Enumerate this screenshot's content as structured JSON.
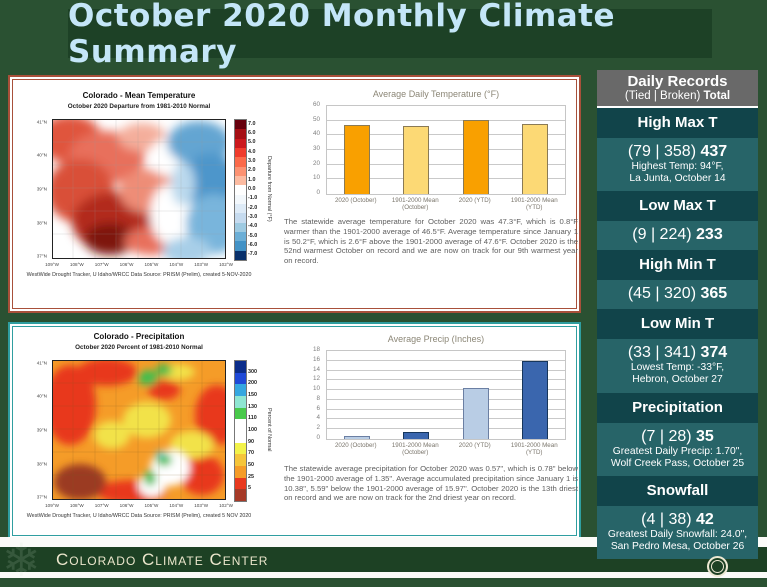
{
  "slide_title": "October 2020 Monthly Climate Summary",
  "colors": {
    "slide_background": "#2A5132",
    "title_box": "#1D4126",
    "title_text": "#C4E6F8",
    "temp_panel_border": "#A8503A",
    "precip_panel_border": "#2F9EA0",
    "sidebar_gray": "#696969",
    "sidebar_header_teal": "#11444A",
    "sidebar_body_teal": "#276468",
    "footer_green": "#1D4124"
  },
  "temp_panel": {
    "map": {
      "title": "Colorado - Mean Temperature",
      "subtitle": "October 2020  Departure from 1981-2010 Normal",
      "caption": "WestWide Drought Tracker, U Idaho/WRCC Data Source: PRISM (Prelim), created 5-NOV-2020",
      "colorbar_label": "Departure from Normal (°F)",
      "colorbar_ticks": [
        "7.0",
        "6.0",
        "5.0",
        "4.0",
        "3.0",
        "2.0",
        "1.0",
        "0.0",
        "-1.0",
        "-2.0",
        "-3.0",
        "-4.0",
        "-5.0",
        "-6.0",
        "-7.0"
      ],
      "colorbar_colors": [
        "#67000D",
        "#A50F15",
        "#CB181D",
        "#EF3B2C",
        "#FB6A4A",
        "#FC9272",
        "#FCBBA1",
        "#FFFFFF",
        "#F3F8FC",
        "#DEEBF7",
        "#C6DBEF",
        "#9ECAE1",
        "#6BAED6",
        "#4292C6",
        "#08306B"
      ],
      "lat_ticks": [
        "41°N",
        "40°N",
        "39°N",
        "38°N",
        "37°N"
      ],
      "lon_ticks": [
        "109°W",
        "108°W",
        "107°W",
        "106°W",
        "105°W",
        "104°W",
        "103°W",
        "102°W"
      ]
    },
    "paragraph": "The statewide average temperature for October 2020 was 47.3°F, which is 0.8°F warmer than the 1901-2000 average of 46.5°F.  Average temperature since January 1 is 50.2°F, which is 2.6°F above the 1901-2000 average of 47.6°F.  October 2020 is the 52nd warmest October on record and we are now on track for our 9th warmest year on record."
  },
  "precip_panel": {
    "map": {
      "title": "Colorado - Precipitation",
      "subtitle": "October 2020  Percent of 1981-2010 Normal",
      "caption": "WestWide Drought Tracker, U Idaho/WRCC Data Source: PRISM (Prelim), created  5 NOV 2020",
      "colorbar_label": "Percent of Normal",
      "colorbar_ticks": [
        "300",
        "200",
        "150",
        "130",
        "110",
        "100",
        "90",
        "70",
        "50",
        "25",
        "5"
      ],
      "colorbar_colors": [
        "#0B2C8A",
        "#1F49D7",
        "#35A7E0",
        "#8FE6D2",
        "#49C94B",
        "#FFFFFF",
        "#FFFFFF",
        "#F2F24A",
        "#F5C53A",
        "#F59C28",
        "#E8391F",
        "#A63A28"
      ],
      "lat_ticks": [
        "41°N",
        "40°N",
        "39°N",
        "38°N",
        "37°N"
      ],
      "lon_ticks": [
        "109°W",
        "108°W",
        "107°W",
        "106°W",
        "105°W",
        "104°W",
        "103°W",
        "102°W"
      ]
    },
    "paragraph": "The statewide average precipitation for October 2020 was 0.57\", which is 0.78\" below the 1901-2000 average of 1.35\".  Average accumulated precipitation since January 1 is 10.38\", 5.59\" below the 1901-2000 average of 15.97\".  October 2020 is the 13th driest on record and we are now on track for the 2nd driest year on record."
  },
  "chart_data": [
    {
      "type": "bar",
      "title": "Average Daily Temperature (°F)",
      "categories": [
        "2020 (October)",
        "1901-2000 Mean\n(October)",
        "2020 (YTD)",
        "1901-2000 Mean\n(YTD)"
      ],
      "values": [
        47.3,
        46.5,
        50.2,
        47.6
      ],
      "xlabel": "",
      "ylabel": "",
      "ylim": [
        0,
        60
      ],
      "ytick_step": 10,
      "grid": true,
      "legend": "none",
      "bar_colors": [
        "#F9A000",
        "#FCD975",
        "#F9A000",
        "#FCD975"
      ],
      "bar_borders": [
        "#8A7A55",
        "#8A7A55",
        "#8A7A55",
        "#8A7A55"
      ]
    },
    {
      "type": "bar",
      "title": "Average Precip (Inches)",
      "categories": [
        "2020 (October)",
        "1901-2000 Mean\n(October)",
        "2020 (YTD)",
        "1901-2000 Mean\n(YTD)"
      ],
      "values": [
        0.57,
        1.35,
        10.38,
        15.97
      ],
      "xlabel": "",
      "ylabel": "",
      "ylim": [
        0,
        18
      ],
      "ytick_step": 2,
      "grid": true,
      "legend": "none",
      "bar_colors": [
        "#B9CDE5",
        "#3A66AE",
        "#B9CDE5",
        "#3A66AE"
      ],
      "bar_borders": [
        "#6B7FA3",
        "#16365C",
        "#6B7FA3",
        "#16365C"
      ]
    }
  ],
  "sidebar": {
    "header_title": "Daily Records",
    "header_subtitle_prefix": "(Tied | Broken) ",
    "header_subtitle_bold": "Total",
    "sections": [
      {
        "label": "High Max T",
        "tied": "79",
        "broken": "358",
        "total": "437",
        "details": [
          "Highest Temp: 94°F,",
          "La Junta, October 14"
        ]
      },
      {
        "label": "Low Max T",
        "tied": "9",
        "broken": "224",
        "total": "233",
        "details": []
      },
      {
        "label": "High Min T",
        "tied": "45",
        "broken": "320",
        "total": "365",
        "details": []
      },
      {
        "label": "Low Min T",
        "tied": "33",
        "broken": "341",
        "total": "374",
        "details": [
          "Lowest Temp: -33°F,",
          "Hebron, October 27"
        ]
      },
      {
        "label": "Precipitation",
        "tied": "7",
        "broken": "28",
        "total": "35",
        "details": [
          "Greatest Daily Precip: 1.70\",",
          "Wolf Creek Pass, October 25"
        ]
      },
      {
        "label": "Snowfall",
        "tied": "4",
        "broken": "38",
        "total": "42",
        "details": [
          "Greatest Daily Snowfall: 24.0\",",
          "San Pedro Mesa, October 26"
        ]
      }
    ]
  },
  "footer": {
    "org": "Colorado Climate Center",
    "snowflake_glyph": "❄"
  }
}
